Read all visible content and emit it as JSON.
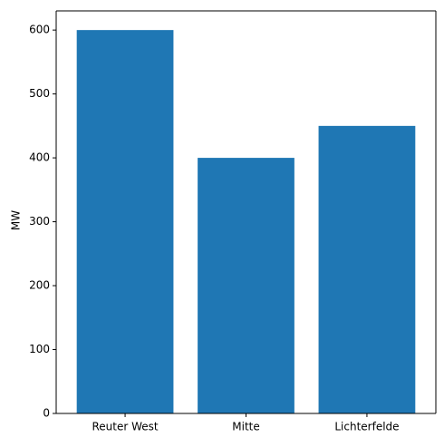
{
  "chart_data": {
    "type": "bar",
    "y_label": "MW",
    "categories": [
      "Reuter West",
      "Mitte",
      "Lichterfelde"
    ],
    "values": [
      600,
      400,
      450
    ],
    "color": "#1f77b4",
    "ylim": [
      0,
      630
    ],
    "yticks": [
      0,
      100,
      200,
      300,
      400,
      500,
      600
    ],
    "grid": false
  }
}
